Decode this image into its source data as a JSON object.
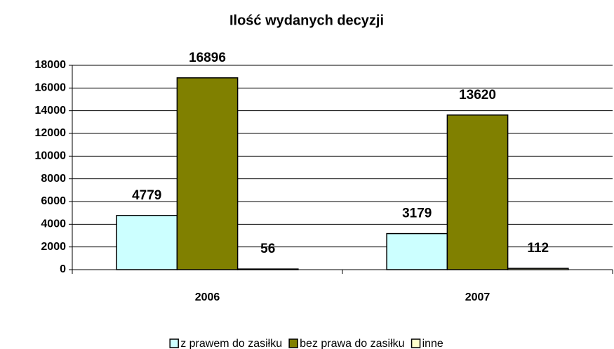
{
  "chart_data": {
    "type": "bar",
    "title": "Ilość wydanych decyzji",
    "categories": [
      "2006",
      "2007"
    ],
    "series": [
      {
        "name": "z prawem do zasiłku",
        "color": "#ccffff",
        "values": [
          4779,
          3179
        ]
      },
      {
        "name": "bez prawa do zasiłku",
        "color": "#808000",
        "values": [
          16896,
          13620
        ]
      },
      {
        "name": "inne",
        "color": "#ffffcc",
        "values": [
          56,
          112
        ]
      }
    ],
    "ylim": [
      0,
      18000
    ],
    "yticks": [
      0,
      2000,
      4000,
      6000,
      8000,
      10000,
      12000,
      14000,
      16000,
      18000
    ],
    "grid": true,
    "legend": "bottom"
  }
}
